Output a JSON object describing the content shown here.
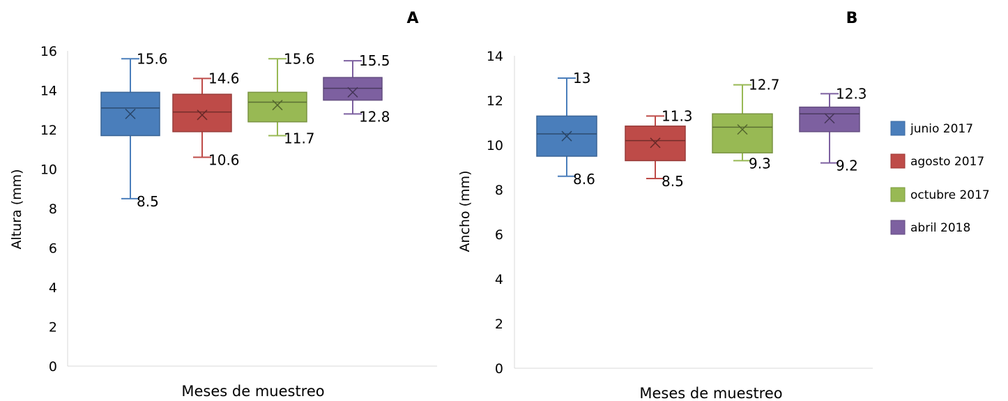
{
  "legend": {
    "position": "right",
    "items": [
      {
        "name": "junio 2017",
        "color": "#4a7ebb"
      },
      {
        "name": "agosto 2017",
        "color": "#be4b48"
      },
      {
        "name": "octubre 2017",
        "color": "#98b954"
      },
      {
        "name": "abril 2018",
        "color": "#7d60a0"
      }
    ]
  },
  "chart_data": [
    {
      "type": "box",
      "panel_label": "A",
      "ylabel": "Altura (mm)",
      "xlabel": "Meses de muestreo",
      "ylim": [
        0,
        16
      ],
      "yticks": [
        0,
        2,
        4,
        6,
        8,
        10,
        12,
        14,
        16
      ],
      "grid": false,
      "series": [
        {
          "name": "junio 2017",
          "color": "#4a7ebb",
          "min": 8.5,
          "q1": 11.7,
          "median": 13.1,
          "mean": 12.8,
          "q3": 13.9,
          "max": 15.6,
          "min_label": "8.5",
          "max_label": "15.6"
        },
        {
          "name": "agosto 2017",
          "color": "#be4b48",
          "min": 10.6,
          "q1": 11.9,
          "median": 12.9,
          "mean": 12.75,
          "q3": 13.8,
          "max": 14.6,
          "min_label": "10.6",
          "max_label": "14.6"
        },
        {
          "name": "octubre 2017",
          "color": "#98b954",
          "min": 11.7,
          "q1": 12.4,
          "median": 13.4,
          "mean": 13.25,
          "q3": 13.9,
          "max": 15.6,
          "min_label": "11.7",
          "max_label": "15.6"
        },
        {
          "name": "abril 2018",
          "color": "#7d60a0",
          "min": 12.8,
          "q1": 13.5,
          "median": 14.1,
          "mean": 13.9,
          "q3": 14.65,
          "max": 15.5,
          "min_label": "12.8",
          "max_label": "15.5"
        }
      ]
    },
    {
      "type": "box",
      "panel_label": "B",
      "ylabel": "Ancho (mm)",
      "xlabel": "Meses de muestreo",
      "ylim": [
        0,
        14
      ],
      "yticks": [
        0,
        2,
        4,
        6,
        8,
        10,
        12,
        14
      ],
      "grid": false,
      "series": [
        {
          "name": "junio 2017",
          "color": "#4a7ebb",
          "min": 8.6,
          "q1": 9.5,
          "median": 10.5,
          "mean": 10.4,
          "q3": 11.3,
          "max": 13,
          "min_label": "8.6",
          "max_label": "13"
        },
        {
          "name": "agosto 2017",
          "color": "#be4b48",
          "min": 8.5,
          "q1": 9.3,
          "median": 10.2,
          "mean": 10.1,
          "q3": 10.85,
          "max": 11.3,
          "min_label": "8.5",
          "max_label": "11.3"
        },
        {
          "name": "octubre 2017",
          "color": "#98b954",
          "min": 9.3,
          "q1": 9.65,
          "median": 10.8,
          "mean": 10.7,
          "q3": 11.4,
          "max": 12.7,
          "min_label": "9.3",
          "max_label": "12.7"
        },
        {
          "name": "abril 2018",
          "color": "#7d60a0",
          "min": 9.2,
          "q1": 10.6,
          "median": 11.4,
          "mean": 11.2,
          "q3": 11.7,
          "max": 12.3,
          "min_label": "9.2",
          "max_label": "12.3"
        }
      ]
    }
  ]
}
